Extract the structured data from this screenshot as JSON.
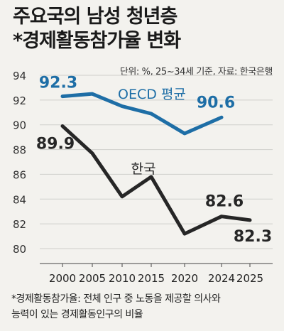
{
  "title": {
    "line1": "주요국의 남성 청년층",
    "line2": "*경제활동참가율 변화"
  },
  "source": "단위: %, 25~34세 기준, 자료: 한국은행",
  "note": {
    "line1": "*경제활동참가율: 전체 인구 중 노동을 제공할 의사와",
    "line2": "능력이 있는 경제활동인구의 비율"
  },
  "colors": {
    "oecd": "#1e6ea6",
    "korea": "#262626",
    "background": "#f3f2ee",
    "grid": "#cfcfcb"
  },
  "chart_data": {
    "type": "line",
    "categories": [
      "2000",
      "2005",
      "2010",
      "2015",
      "2020",
      "2024",
      "2025"
    ],
    "ylim": [
      80,
      94
    ],
    "yticks": [
      80,
      82,
      84,
      86,
      88,
      90,
      92,
      94
    ],
    "grid": true,
    "series": [
      {
        "name": "OECD 평균",
        "color": "#1e6ea6",
        "values": [
          92.3,
          92.5,
          91.5,
          90.9,
          89.3,
          90.6,
          null
        ],
        "labels": {
          "0": "92.3",
          "5": "90.6"
        }
      },
      {
        "name": "한국",
        "color": "#262626",
        "values": [
          89.9,
          87.7,
          84.2,
          85.8,
          81.2,
          82.6,
          82.3
        ],
        "labels": {
          "0": "89.9",
          "5": "82.6",
          "6": "82.3"
        }
      }
    ]
  }
}
